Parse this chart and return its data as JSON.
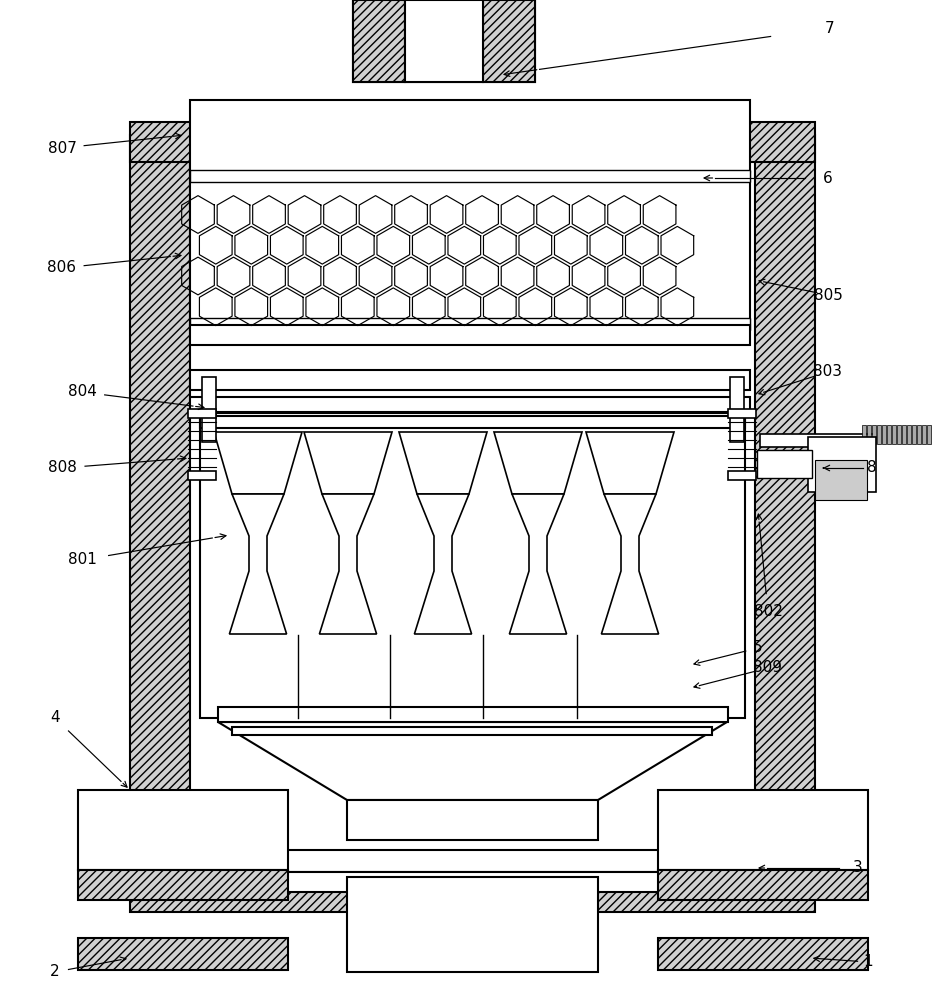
{
  "bg_color": "#ffffff",
  "line_color": "#000000",
  "fig_width": 9.45,
  "fig_height": 10.0,
  "labels_data": [
    [
      "7",
      830,
      28,
      500,
      75
    ],
    [
      "6",
      828,
      178,
      700,
      178
    ],
    [
      "807",
      62,
      148,
      185,
      135
    ],
    [
      "806",
      62,
      268,
      185,
      255
    ],
    [
      "805",
      828,
      295,
      755,
      280
    ],
    [
      "804",
      82,
      392,
      208,
      408
    ],
    [
      "808",
      62,
      468,
      190,
      458
    ],
    [
      "803",
      828,
      372,
      755,
      395
    ],
    [
      "801",
      82,
      560,
      230,
      535
    ],
    [
      "5",
      758,
      648,
      690,
      665
    ],
    [
      "809",
      768,
      668,
      690,
      688
    ],
    [
      "802",
      768,
      612,
      758,
      510
    ],
    [
      "8",
      872,
      468,
      820,
      468
    ],
    [
      "4",
      55,
      718,
      130,
      790
    ],
    [
      "3",
      858,
      868,
      755,
      868
    ],
    [
      "2",
      55,
      972,
      130,
      958
    ],
    [
      "1",
      868,
      962,
      810,
      958
    ]
  ]
}
